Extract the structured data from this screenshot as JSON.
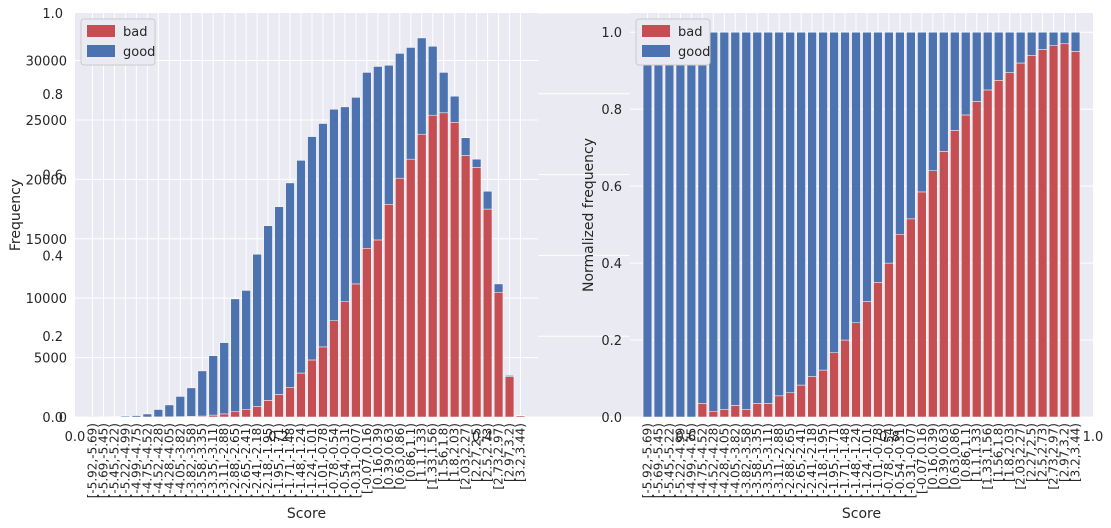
{
  "chart_data": [
    {
      "type": "bar",
      "stacked": true,
      "xlabel": "Score",
      "ylabel": "Frequency",
      "ylim": [
        0,
        34000
      ],
      "yticks": [
        0,
        5000,
        10000,
        15000,
        20000,
        25000,
        30000
      ],
      "ytick_labels": [
        "0",
        "5000",
        "10000",
        "15000",
        "20000",
        "25000",
        "30000"
      ],
      "legend_placement": "top-left",
      "grid": true,
      "categories": [
        "[-5.92,-5.69)",
        "[-5.69,-5.45)",
        "[-5.45,-5.22)",
        "[-5.22,-4.99)",
        "[-4.99,-4.75)",
        "[-4.75,-4.52)",
        "[-4.52,-4.28)",
        "[-4.28,-4.05)",
        "[-4.05,-3.82)",
        "[-3.82,-3.58)",
        "[-3.58,-3.35)",
        "[-3.35,-3.11)",
        "[-3.11,-2.88)",
        "[-2.88,-2.65)",
        "[-2.65,-2.41)",
        "[-2.41,-2.18)",
        "[-2.18,-1.95)",
        "[-1.95,-1.71)",
        "[-1.71,-1.48)",
        "[-1.48,-1.24)",
        "[-1.24,-1.01)",
        "[-1.01,-0.78)",
        "[-0.78,-0.54)",
        "[-0.54,-0.31)",
        "[-0.31,-0.07)",
        "[-0.07,0.16)",
        "[0.16,0.39)",
        "[0.39,0.63)",
        "[0.63,0.86)",
        "[0.86,1.1)",
        "[1.1,1.33)",
        "[1.33,1.56)",
        "[1.56,1.8)",
        "[1.8,2.03)",
        "[2.03,2.27)",
        "[2.27,2.5)",
        "[2.5,2.73)",
        "[2.73,2.97)",
        "[2.97,3.2)",
        "[3.2,3.44)"
      ],
      "series": [
        {
          "name": "bad",
          "color": "#c44e52",
          "values": [
            0,
            0,
            0,
            0,
            0,
            3,
            10,
            15,
            30,
            50,
            80,
            160,
            260,
            440,
            650,
            900,
            1400,
            1900,
            2500,
            3700,
            4800,
            5900,
            8100,
            9700,
            11200,
            14200,
            14900,
            17900,
            20100,
            21700,
            23800,
            25400,
            25600,
            24800,
            22000,
            21000,
            17500,
            10500,
            3400,
            100
          ]
        },
        {
          "name": "good",
          "color": "#4c72b0",
          "values": [
            10,
            20,
            40,
            80,
            120,
            250,
            620,
            1000,
            1700,
            2400,
            3800,
            5000,
            6000,
            9500,
            10000,
            12800,
            14700,
            15800,
            17200,
            17900,
            18800,
            18800,
            17800,
            16400,
            15700,
            14800,
            14600,
            11700,
            10500,
            9400,
            8100,
            5800,
            3400,
            2200,
            1500,
            700,
            1500,
            700,
            100,
            30
          ]
        }
      ]
    },
    {
      "type": "bar",
      "stacked": true,
      "xlabel": "Score",
      "ylabel": "Normalized frequency",
      "ylim": [
        0,
        1.05
      ],
      "yticks": [
        0,
        0.2,
        0.4,
        0.6,
        0.8,
        1.0
      ],
      "ytick_labels": [
        "0.0",
        "0.2",
        "0.4",
        "0.6",
        "0.8",
        "1.0"
      ],
      "legend_placement": "top-left",
      "grid": true,
      "categories": [
        "[-5.92,-5.69)",
        "[-5.69,-5.45)",
        "[-5.45,-5.22)",
        "[-5.22,-4.99)",
        "[-4.99,-4.75)",
        "[-4.75,-4.52)",
        "[-4.52,-4.28)",
        "[-4.28,-4.05)",
        "[-4.05,-3.82)",
        "[-3.82,-3.58)",
        "[-3.58,-3.35)",
        "[-3.35,-3.11)",
        "[-3.11,-2.88)",
        "[-2.88,-2.65)",
        "[-2.65,-2.41)",
        "[-2.41,-2.18)",
        "[-2.18,-1.95)",
        "[-1.95,-1.71)",
        "[-1.71,-1.48)",
        "[-1.48,-1.24)",
        "[-1.24,-1.01)",
        "[-1.01,-0.78)",
        "[-0.78,-0.54)",
        "[-0.54,-0.31)",
        "[-0.31,-0.07)",
        "[-0.07,0.16)",
        "[0.16,0.39)",
        "[0.39,0.63)",
        "[0.63,0.86)",
        "[0.86,1.1)",
        "[1.1,1.33)",
        "[1.33,1.56)",
        "[1.56,1.8)",
        "[1.8,2.03)",
        "[2.03,2.27)",
        "[2.27,2.5)",
        "[2.5,2.73)",
        "[2.73,2.97)",
        "[2.97,3.2)",
        "[3.2,3.44)"
      ],
      "series": [
        {
          "name": "bad",
          "color": "#c44e52",
          "values": [
            0,
            0,
            0,
            0,
            0,
            0.035,
            0.015,
            0.02,
            0.03,
            0.02,
            0.035,
            0.035,
            0.055,
            0.063,
            0.083,
            0.105,
            0.122,
            0.167,
            0.2,
            0.245,
            0.3,
            0.35,
            0.4,
            0.475,
            0.515,
            0.585,
            0.64,
            0.69,
            0.745,
            0.785,
            0.82,
            0.85,
            0.875,
            0.895,
            0.92,
            0.94,
            0.955,
            0.965,
            0.97,
            0.95
          ]
        },
        {
          "name": "good",
          "color": "#4c72b0",
          "values": [
            1,
            1,
            1,
            1,
            1,
            0.965,
            0.985,
            0.98,
            0.97,
            0.98,
            0.965,
            0.965,
            0.945,
            0.937,
            0.917,
            0.895,
            0.878,
            0.833,
            0.8,
            0.755,
            0.7,
            0.65,
            0.6,
            0.525,
            0.485,
            0.415,
            0.36,
            0.31,
            0.255,
            0.215,
            0.18,
            0.15,
            0.125,
            0.105,
            0.08,
            0.06,
            0.045,
            0.035,
            0.03,
            0.05
          ]
        }
      ]
    }
  ],
  "overlay_axes": [
    {
      "ytick_labels": [
        "0.0",
        "0.2",
        "0.4",
        "0.6",
        "0.8",
        "1.0"
      ],
      "xtick_labels": [
        "0.0",
        "0.2",
        "0.4",
        "0.6",
        "0.8",
        "1.0"
      ]
    }
  ],
  "colors": {
    "background": "#eaeaf2",
    "grid": "#ffffff",
    "text": "#262626",
    "bad": "#c44e52",
    "good": "#4c72b0"
  }
}
